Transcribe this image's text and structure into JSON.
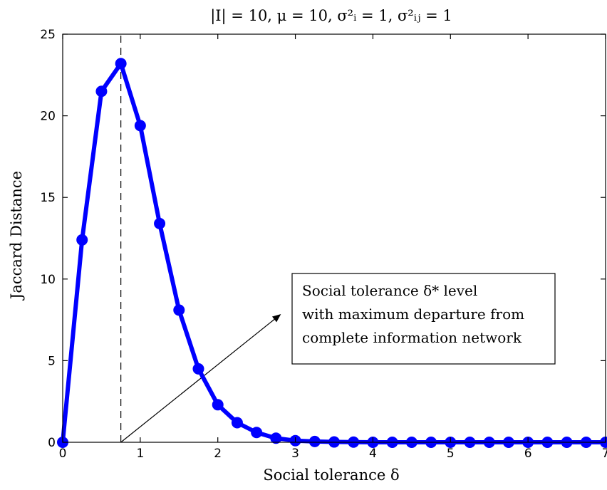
{
  "chart_data": {
    "type": "line",
    "title": "|I| = 10, μ = 10, σ²ᵢ = 1, σ²ᵢⱼ = 1",
    "xlabel": "Social tolerance δ",
    "ylabel": "Jaccard Distance",
    "xlim": [
      0,
      7
    ],
    "ylim": [
      0,
      25
    ],
    "xticks": [
      0,
      1,
      2,
      3,
      4,
      5,
      6,
      7
    ],
    "yticks": [
      0,
      5,
      10,
      15,
      20,
      25
    ],
    "grid": false,
    "series": [
      {
        "color": "#0000ff",
        "x": [
          0,
          0.25,
          0.5,
          0.75,
          1.0,
          1.25,
          1.5,
          1.75,
          2.0,
          2.25,
          2.5,
          2.75,
          3.0,
          3.25,
          3.5,
          3.75,
          4.0,
          4.25,
          4.5,
          4.75,
          5.0,
          5.25,
          5.5,
          5.75,
          6.0,
          6.25,
          6.5,
          6.75,
          7.0
        ],
        "y": [
          0,
          12.4,
          21.5,
          23.2,
          19.4,
          13.4,
          8.1,
          4.5,
          2.3,
          1.2,
          0.6,
          0.25,
          0.1,
          0.05,
          0.02,
          0.01,
          0,
          0,
          0,
          0,
          0,
          0,
          0,
          0,
          0,
          0,
          0,
          0,
          0
        ]
      }
    ],
    "vline": {
      "x": 0.75,
      "style": "dashed"
    },
    "annotation": {
      "lines": [
        "Social tolerance δ* level",
        "with maximum departure from",
        "complete information network"
      ],
      "arrow_from": [
        0.75,
        0
      ],
      "arrow_to": [
        2.8,
        7.8
      ]
    }
  }
}
